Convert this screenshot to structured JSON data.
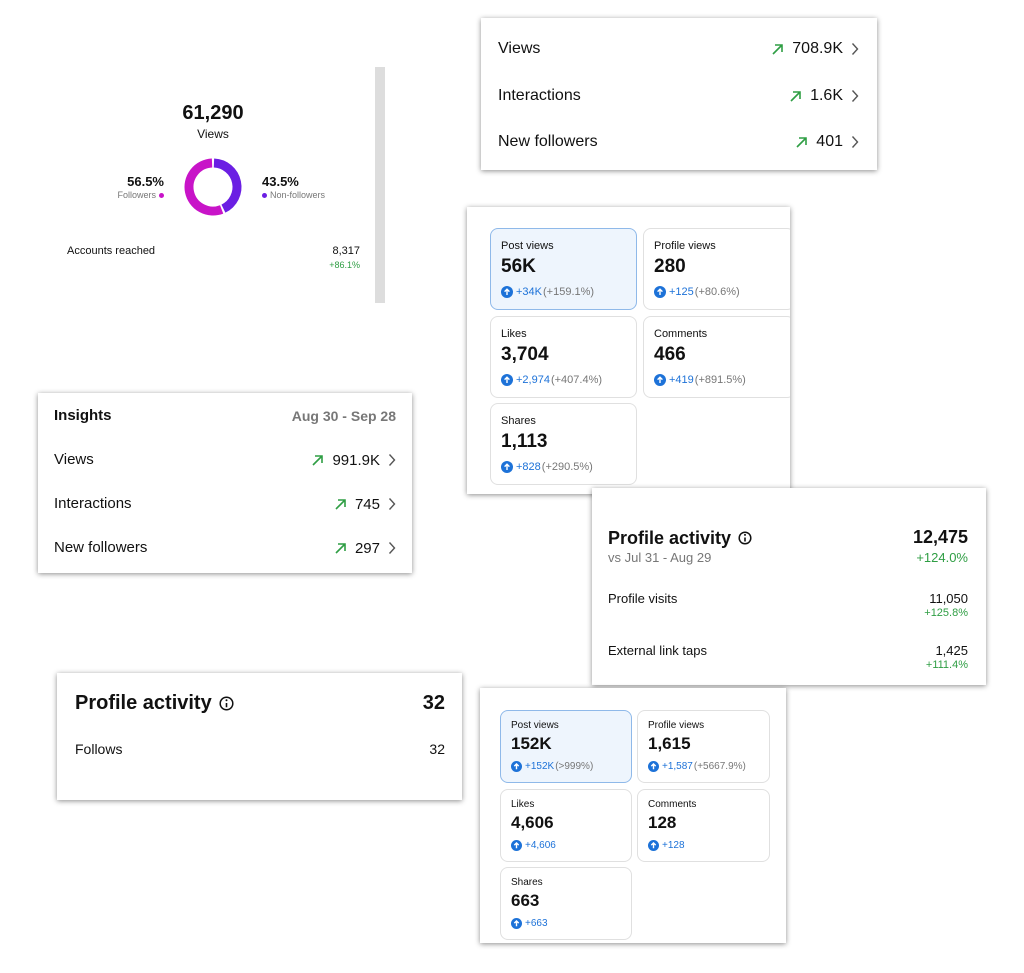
{
  "views_card": {
    "total": "61,290",
    "total_label": "Views",
    "segments": [
      {
        "label": "Followers",
        "value": 56.5,
        "value_label": "56.5%",
        "color": "#c814c8"
      },
      {
        "label": "Non-followers",
        "value": 43.5,
        "value_label": "43.5%",
        "color": "#6b1fe3"
      }
    ],
    "accounts_reached": {
      "label": "Accounts reached",
      "value": "8,317",
      "change": "+86.1%"
    }
  },
  "summary_top": {
    "rows": [
      {
        "label": "Views",
        "value": "708.9K"
      },
      {
        "label": "Interactions",
        "value": "1.6K"
      },
      {
        "label": "New followers",
        "value": "401"
      }
    ]
  },
  "post_stats_a": {
    "tiles": [
      {
        "label": "Post views",
        "value": "56K",
        "change": "+34K",
        "percent": "(+159.1%)",
        "selected": true
      },
      {
        "label": "Profile views",
        "value": "280",
        "change": "+125",
        "percent": "(+80.6%)"
      },
      {
        "label": "Likes",
        "value": "3,704",
        "change": "+2,974",
        "percent": "(+407.4%)"
      },
      {
        "label": "Comments",
        "value": "466",
        "change": "+419",
        "percent": "(+891.5%)"
      },
      {
        "label": "Shares",
        "value": "1,113",
        "change": "+828",
        "percent": "(+290.5%)"
      }
    ]
  },
  "insights": {
    "title": "Insights",
    "date_range": "Aug 30 - Sep 28",
    "rows": [
      {
        "label": "Views",
        "value": "991.9K"
      },
      {
        "label": "Interactions",
        "value": "745"
      },
      {
        "label": "New followers",
        "value": "297"
      }
    ]
  },
  "profile_activity_a": {
    "title": "Profile activity",
    "total": "12,475",
    "comparison": "vs Jul 31 - Aug 29",
    "total_change": "+124.0%",
    "rows": [
      {
        "label": "Profile visits",
        "value": "11,050",
        "change": "+125.8%"
      },
      {
        "label": "External link taps",
        "value": "1,425",
        "change": "+111.4%"
      }
    ]
  },
  "profile_activity_b": {
    "title": "Profile activity",
    "total": "32",
    "rows": [
      {
        "label": "Follows",
        "value": "32"
      }
    ]
  },
  "post_stats_b": {
    "tiles": [
      {
        "label": "Post views",
        "value": "152K",
        "change": "+152K",
        "percent": "(>999%)",
        "selected": true
      },
      {
        "label": "Profile views",
        "value": "1,615",
        "change": "+1,587",
        "percent": "(+5667.9%)"
      },
      {
        "label": "Likes",
        "value": "4,606",
        "change": "+4,606"
      },
      {
        "label": "Comments",
        "value": "128",
        "change": "+128"
      },
      {
        "label": "Shares",
        "value": "663",
        "change": "+663"
      }
    ]
  }
}
